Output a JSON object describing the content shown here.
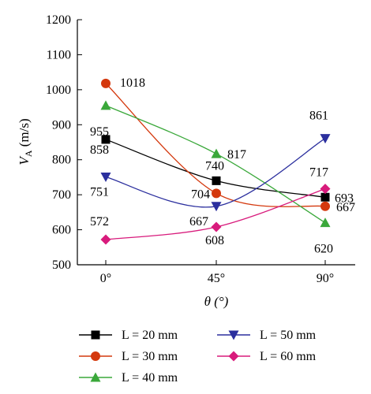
{
  "chart_data": {
    "type": "line",
    "categories": [
      "0°",
      "45°",
      "90°"
    ],
    "xlabel": "θ (°)",
    "ylabel": "VA (m/s)",
    "ylim": [
      500,
      1200
    ],
    "yticks": [
      500,
      600,
      700,
      800,
      900,
      1000,
      1100,
      1200
    ],
    "grid": false,
    "legend_position": "bottom",
    "series": [
      {
        "name": "L = 20 mm",
        "values": [
          858,
          740,
          693
        ],
        "color": "#000000",
        "marker": "square"
      },
      {
        "name": "L = 30 mm",
        "values": [
          1018,
          704,
          667
        ],
        "color": "#d4380d",
        "marker": "circle"
      },
      {
        "name": "L = 40 mm",
        "values": [
          955,
          817,
          620
        ],
        "color": "#3aa83a",
        "marker": "triangle-up"
      },
      {
        "name": "L = 50 mm",
        "values": [
          751,
          667,
          861
        ],
        "color": "#2b2f9e",
        "marker": "triangle-down"
      },
      {
        "name": "L = 60 mm",
        "values": [
          572,
          608,
          717
        ],
        "color": "#d81b7c",
        "marker": "diamond"
      }
    ]
  }
}
